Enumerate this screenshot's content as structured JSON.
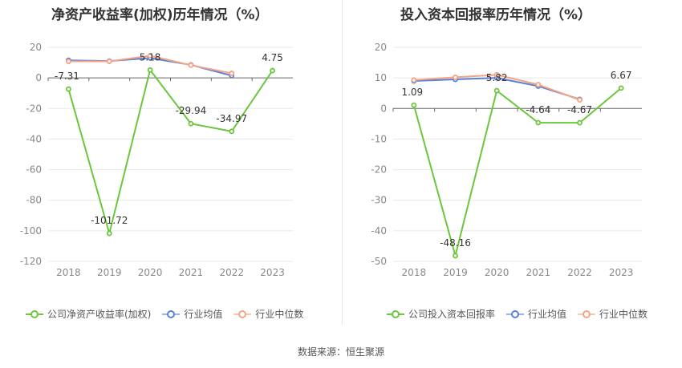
{
  "source_label": "数据来源：恒生聚源",
  "chart_data": [
    {
      "type": "line",
      "title": "净资产收益率(加权)历年情况（%）",
      "categories": [
        "2018",
        "2019",
        "2020",
        "2021",
        "2022",
        "2023"
      ],
      "ylim": [
        -120,
        20
      ],
      "yticks": [
        20,
        0,
        -20,
        -40,
        -60,
        -80,
        -100,
        -120
      ],
      "grid": true,
      "legend_position": "bottom-left",
      "series": [
        {
          "name": "公司净资产收益率(加权)",
          "color": "#6cc63c",
          "values": [
            -7.31,
            -101.72,
            5.18,
            -29.94,
            -34.97,
            4.75
          ],
          "labels": [
            "-7.31",
            "-101.72",
            "5.18",
            "-29.94",
            "-34.97",
            "4.75"
          ]
        },
        {
          "name": "行业均值",
          "color": "#5a7fd6",
          "values": [
            11.5,
            11.0,
            13.0,
            8.5,
            1.5,
            null
          ]
        },
        {
          "name": "行业中位数",
          "color": "#f4a384",
          "values": [
            10.8,
            10.8,
            14.5,
            8.3,
            3.0,
            null
          ]
        }
      ]
    },
    {
      "type": "line",
      "title": "投入资本回报率历年情况（%）",
      "categories": [
        "2018",
        "2019",
        "2020",
        "2021",
        "2022",
        "2023"
      ],
      "ylim": [
        -50,
        20
      ],
      "yticks": [
        20,
        10,
        0,
        -10,
        -20,
        -30,
        -40,
        -50
      ],
      "grid": true,
      "legend_position": "bottom-left",
      "series": [
        {
          "name": "公司投入资本回报率",
          "color": "#6cc63c",
          "values": [
            1.09,
            -48.16,
            5.82,
            -4.64,
            -4.67,
            6.67
          ],
          "labels": [
            "1.09",
            "-48.16",
            "5.82",
            "-4.64",
            "-4.67",
            "6.67"
          ]
        },
        {
          "name": "行业均值",
          "color": "#5a7fd6",
          "values": [
            9.0,
            9.5,
            10.0,
            7.3,
            3.0,
            null
          ]
        },
        {
          "name": "行业中位数",
          "color": "#f4a384",
          "values": [
            9.3,
            10.2,
            11.0,
            7.8,
            2.8,
            null
          ]
        }
      ]
    }
  ]
}
